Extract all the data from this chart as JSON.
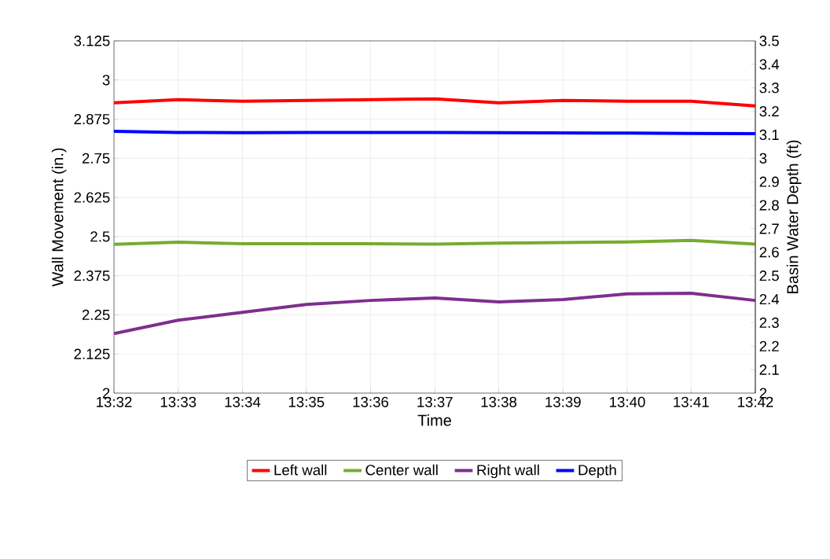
{
  "chart_data": {
    "type": "line",
    "xlabel": "Time",
    "ylabel": "Wall Movement (in.)",
    "y2label": "Basin Water Depth (ft)",
    "x": [
      13.5333,
      13.55,
      13.5667,
      13.5833,
      13.6,
      13.6167,
      13.6333,
      13.65,
      13.6667,
      13.6833,
      13.7
    ],
    "xlim": [
      13.5333,
      13.7
    ],
    "xticks": [
      {
        "value": 13.5333,
        "label": "13:32"
      },
      {
        "value": 13.55,
        "label": "13:33"
      },
      {
        "value": 13.5667,
        "label": "13:34"
      },
      {
        "value": 13.5833,
        "label": "13:35"
      },
      {
        "value": 13.6,
        "label": "13:36"
      },
      {
        "value": 13.6167,
        "label": "13:37"
      },
      {
        "value": 13.6333,
        "label": "13:38"
      },
      {
        "value": 13.65,
        "label": "13:39"
      },
      {
        "value": 13.6667,
        "label": "13:40"
      },
      {
        "value": 13.6833,
        "label": "13:41"
      },
      {
        "value": 13.7,
        "label": "13:42"
      }
    ],
    "ylim": [
      2,
      3.125
    ],
    "yticks": [
      2,
      2.125,
      2.25,
      2.375,
      2.5,
      2.625,
      2.75,
      2.875,
      3,
      3.125
    ],
    "y2lim": [
      2,
      3.5
    ],
    "y2ticks": [
      2,
      2.1,
      2.2,
      2.3,
      2.4,
      2.5,
      2.6,
      2.7,
      2.8,
      2.9,
      3,
      3.1,
      3.2,
      3.3,
      3.4,
      3.5
    ],
    "series": [
      {
        "name": "Left wall",
        "color": "#ff0000",
        "values": [
          2.927,
          2.937,
          2.932,
          2.935,
          2.937,
          2.94,
          2.927,
          2.935,
          2.932,
          2.932,
          2.917
        ]
      },
      {
        "name": "Center wall",
        "color": "#77ac30",
        "values": [
          2.475,
          2.482,
          2.477,
          2.477,
          2.477,
          2.476,
          2.479,
          2.481,
          2.483,
          2.488,
          2.476
        ]
      },
      {
        "name": "Right wall",
        "color": "#7e2f8e",
        "values": [
          2.19,
          2.233,
          2.258,
          2.283,
          2.296,
          2.304,
          2.291,
          2.299,
          2.317,
          2.319,
          2.296
        ]
      },
      {
        "name": "Depth",
        "color": "#0000ff",
        "axis": "y2",
        "values": [
          3.115,
          3.11,
          3.109,
          3.11,
          3.11,
          3.11,
          3.109,
          3.108,
          3.107,
          3.106,
          3.105
        ]
      }
    ],
    "grid": true,
    "legend": "bottom",
    "marker": "none",
    "line_style": "solid"
  }
}
